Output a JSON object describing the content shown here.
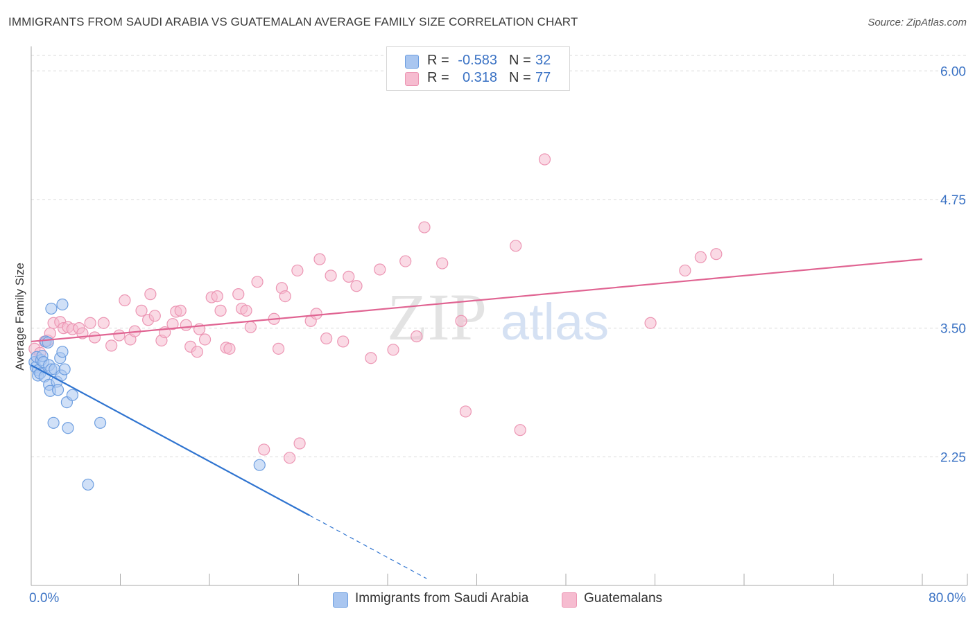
{
  "title": "IMMIGRANTS FROM SAUDI ARABIA VS GUATEMALAN AVERAGE FAMILY SIZE CORRELATION CHART",
  "source": "Source: ZipAtlas.com",
  "legend_top": [
    {
      "r_label": "R =",
      "r_value": "-0.583",
      "n_label": "N =",
      "n_value": "32"
    },
    {
      "r_label": "R =",
      "r_value": "0.318",
      "n_label": "N =",
      "n_value": "77"
    }
  ],
  "legend_bottom": [
    {
      "label": "Immigrants from Saudi Arabia"
    },
    {
      "label": "Guatemalans"
    }
  ],
  "colors": {
    "blue_fill": "#a9c6f0",
    "blue_stroke": "#6d9ee0",
    "blue_line": "#2f74d0",
    "pink_fill": "#f6bcd0",
    "pink_stroke": "#ec95b3",
    "pink_line": "#e06492",
    "grid": "#d9d9d9",
    "tick_label": "#3a72c4",
    "axis": "#aaaaaa"
  },
  "chart_data": {
    "type": "scatter",
    "title": "IMMIGRANTS FROM SAUDI ARABIA VS GUATEMALAN AVERAGE FAMILY SIZE CORRELATION CHART",
    "xlabel": "",
    "ylabel": "Average Family Size",
    "xlim": [
      0,
      80
    ],
    "ylim": [
      1.0,
      6.15
    ],
    "x_tick_labels": [
      {
        "value": 0,
        "label": "0.0%"
      },
      {
        "value": 80,
        "label": "80.0%"
      }
    ],
    "y_ticks": [
      {
        "value": 2.25,
        "label": "2.25"
      },
      {
        "value": 3.5,
        "label": "3.50"
      },
      {
        "value": 4.75,
        "label": "4.75"
      },
      {
        "value": 6.0,
        "label": "6.00"
      }
    ],
    "x_minor_ticks": [
      0,
      8,
      16,
      24,
      32,
      40,
      48,
      56,
      64,
      72,
      80
    ],
    "watermark": {
      "part1": "ZIP",
      "part2": "atlas"
    },
    "series": [
      {
        "name": "Immigrants from Saudi Arabia",
        "color_key": "blue",
        "points": [
          [
            0.3,
            3.17
          ],
          [
            0.4,
            3.12
          ],
          [
            0.5,
            3.22
          ],
          [
            0.6,
            3.09
          ],
          [
            0.6,
            3.04
          ],
          [
            0.8,
            3.06
          ],
          [
            0.9,
            3.19
          ],
          [
            1.0,
            3.23
          ],
          [
            1.1,
            3.17
          ],
          [
            1.2,
            3.03
          ],
          [
            1.3,
            3.37
          ],
          [
            1.5,
            3.36
          ],
          [
            1.6,
            3.14
          ],
          [
            1.6,
            2.95
          ],
          [
            1.7,
            2.89
          ],
          [
            1.8,
            3.1
          ],
          [
            1.8,
            3.69
          ],
          [
            2.0,
            2.58
          ],
          [
            2.1,
            3.1
          ],
          [
            2.3,
            2.98
          ],
          [
            2.4,
            2.9
          ],
          [
            2.6,
            3.21
          ],
          [
            2.7,
            3.04
          ],
          [
            2.8,
            3.73
          ],
          [
            2.8,
            3.27
          ],
          [
            3.0,
            3.1
          ],
          [
            3.2,
            2.78
          ],
          [
            3.3,
            2.53
          ],
          [
            3.7,
            2.85
          ],
          [
            6.2,
            2.58
          ],
          [
            5.1,
            1.98
          ],
          [
            20.5,
            2.17
          ]
        ],
        "trend": {
          "x0": 0,
          "y0": 3.14,
          "x1": 25,
          "y1": 1.68,
          "dash_to_x": 35.5
        }
      },
      {
        "name": "Guatemalans",
        "color_key": "pink",
        "points": [
          [
            0.3,
            3.3
          ],
          [
            0.5,
            3.22
          ],
          [
            0.8,
            3.26
          ],
          [
            1.2,
            3.37
          ],
          [
            1.5,
            3.38
          ],
          [
            1.7,
            3.45
          ],
          [
            2.0,
            3.55
          ],
          [
            2.6,
            3.56
          ],
          [
            2.9,
            3.5
          ],
          [
            3.3,
            3.51
          ],
          [
            3.7,
            3.49
          ],
          [
            4.3,
            3.5
          ],
          [
            4.6,
            3.45
          ],
          [
            5.3,
            3.55
          ],
          [
            5.7,
            3.41
          ],
          [
            6.5,
            3.55
          ],
          [
            7.2,
            3.33
          ],
          [
            7.9,
            3.43
          ],
          [
            8.4,
            3.77
          ],
          [
            8.9,
            3.39
          ],
          [
            9.3,
            3.47
          ],
          [
            9.9,
            3.67
          ],
          [
            10.5,
            3.58
          ],
          [
            10.7,
            3.83
          ],
          [
            11.1,
            3.62
          ],
          [
            11.7,
            3.38
          ],
          [
            12.0,
            3.46
          ],
          [
            12.7,
            3.54
          ],
          [
            13.0,
            3.66
          ],
          [
            13.4,
            3.67
          ],
          [
            13.9,
            3.53
          ],
          [
            14.3,
            3.32
          ],
          [
            14.9,
            3.27
          ],
          [
            15.1,
            3.49
          ],
          [
            15.6,
            3.39
          ],
          [
            16.2,
            3.8
          ],
          [
            16.7,
            3.81
          ],
          [
            17.0,
            3.67
          ],
          [
            17.5,
            3.31
          ],
          [
            17.8,
            3.3
          ],
          [
            18.6,
            3.83
          ],
          [
            18.9,
            3.69
          ],
          [
            19.3,
            3.67
          ],
          [
            19.7,
            3.51
          ],
          [
            20.3,
            3.95
          ],
          [
            21.8,
            3.59
          ],
          [
            22.2,
            3.3
          ],
          [
            22.5,
            3.89
          ],
          [
            22.8,
            3.81
          ],
          [
            23.9,
            4.06
          ],
          [
            25.1,
            3.57
          ],
          [
            25.6,
            3.64
          ],
          [
            25.9,
            4.17
          ],
          [
            26.5,
            3.4
          ],
          [
            26.9,
            4.01
          ],
          [
            28.0,
            3.37
          ],
          [
            28.5,
            4.0
          ],
          [
            29.2,
            3.91
          ],
          [
            30.5,
            3.21
          ],
          [
            31.3,
            4.07
          ],
          [
            32.5,
            3.29
          ],
          [
            33.6,
            4.15
          ],
          [
            34.6,
            3.42
          ],
          [
            35.3,
            4.48
          ],
          [
            36.9,
            4.13
          ],
          [
            38.6,
            3.57
          ],
          [
            39.0,
            2.69
          ],
          [
            43.5,
            4.3
          ],
          [
            43.9,
            2.51
          ],
          [
            46.1,
            5.14
          ],
          [
            55.6,
            3.55
          ],
          [
            58.7,
            4.06
          ],
          [
            60.1,
            4.19
          ],
          [
            61.5,
            4.22
          ],
          [
            20.9,
            2.32
          ],
          [
            23.2,
            2.24
          ],
          [
            24.1,
            2.38
          ]
        ],
        "trend": {
          "x0": 0,
          "y0": 3.37,
          "x1": 80,
          "y1": 4.17
        }
      }
    ]
  }
}
